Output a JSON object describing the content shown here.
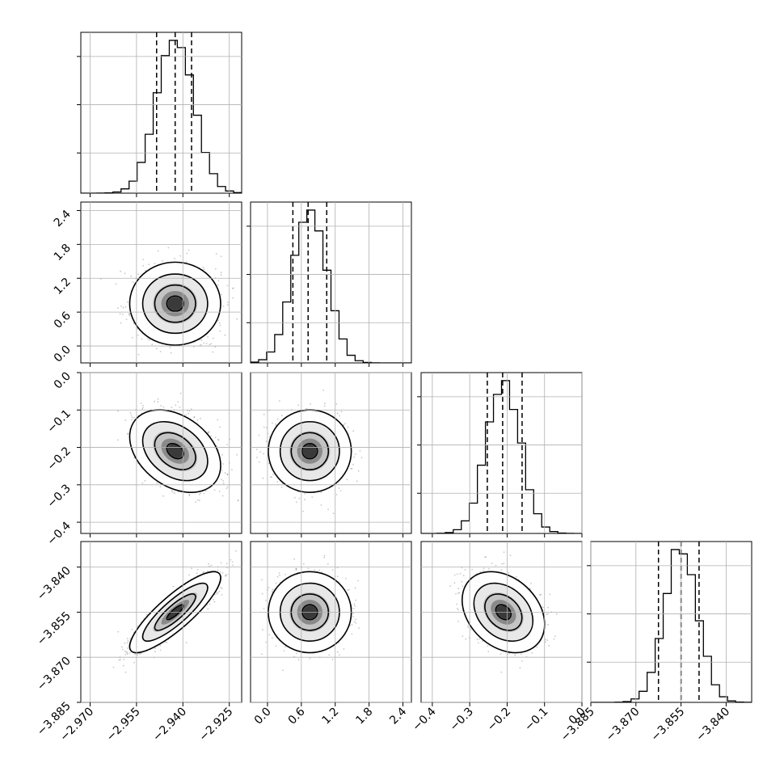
{
  "chart_data": {
    "type": "scatter",
    "plot_kind": "corner",
    "parameters": 4,
    "grid": true,
    "xlabels_shown": false,
    "ylabels_shown": false,
    "quantile_lines": [
      0.16,
      0.5,
      0.84
    ],
    "dims": [
      {
        "index": 0,
        "range": [
          -2.973,
          -2.921
        ],
        "ticks": [
          -2.97,
          -2.955,
          -2.94,
          -2.925
        ],
        "tick_labels": [
          "−2.970",
          "−2.955",
          "−2.940",
          "−2.925"
        ],
        "mean": -2.9425,
        "sd": 0.006,
        "quantiles": [
          -2.9485,
          -2.9425,
          -2.9372
        ]
      },
      {
        "index": 1,
        "range": [
          -0.3,
          2.55
        ],
        "ticks": [
          0.0,
          0.6,
          1.2,
          1.8,
          2.4
        ],
        "tick_labels": [
          "0.0",
          "0.6",
          "1.2",
          "1.8",
          "2.4"
        ],
        "mean": 0.75,
        "sd": 0.3,
        "quantiles": [
          0.45,
          0.72,
          1.05
        ]
      },
      {
        "index": 2,
        "range": [
          -0.43,
          0.0
        ],
        "ticks": [
          -0.4,
          -0.3,
          -0.2,
          -0.1,
          0.0
        ],
        "tick_labels": [
          "−0.4",
          "−0.3",
          "−0.2",
          "−0.1",
          "0.0"
        ],
        "mean": -0.21,
        "sd": 0.045,
        "quantiles": [
          -0.253,
          -0.212,
          -0.16
        ]
      },
      {
        "index": 3,
        "range": [
          -3.885,
          -3.8315
        ],
        "ticks": [
          -3.885,
          -3.87,
          -3.855,
          -3.84
        ],
        "tick_labels": [
          "−3.885",
          "−3.870",
          "−3.855",
          "−3.840"
        ],
        "mean": -3.855,
        "sd": 0.0055,
        "quantiles": [
          -3.8625,
          -3.855,
          -3.849
        ]
      }
    ],
    "correlations": [
      {
        "i": 1,
        "j": 0,
        "rho": 0.0
      },
      {
        "i": 2,
        "j": 0,
        "rho": -0.35
      },
      {
        "i": 2,
        "j": 1,
        "rho": 0.0
      },
      {
        "i": 3,
        "j": 0,
        "rho": 0.85
      },
      {
        "i": 3,
        "j": 1,
        "rho": 0.0
      },
      {
        "i": 3,
        "j": 2,
        "rho": -0.3
      }
    ]
  }
}
